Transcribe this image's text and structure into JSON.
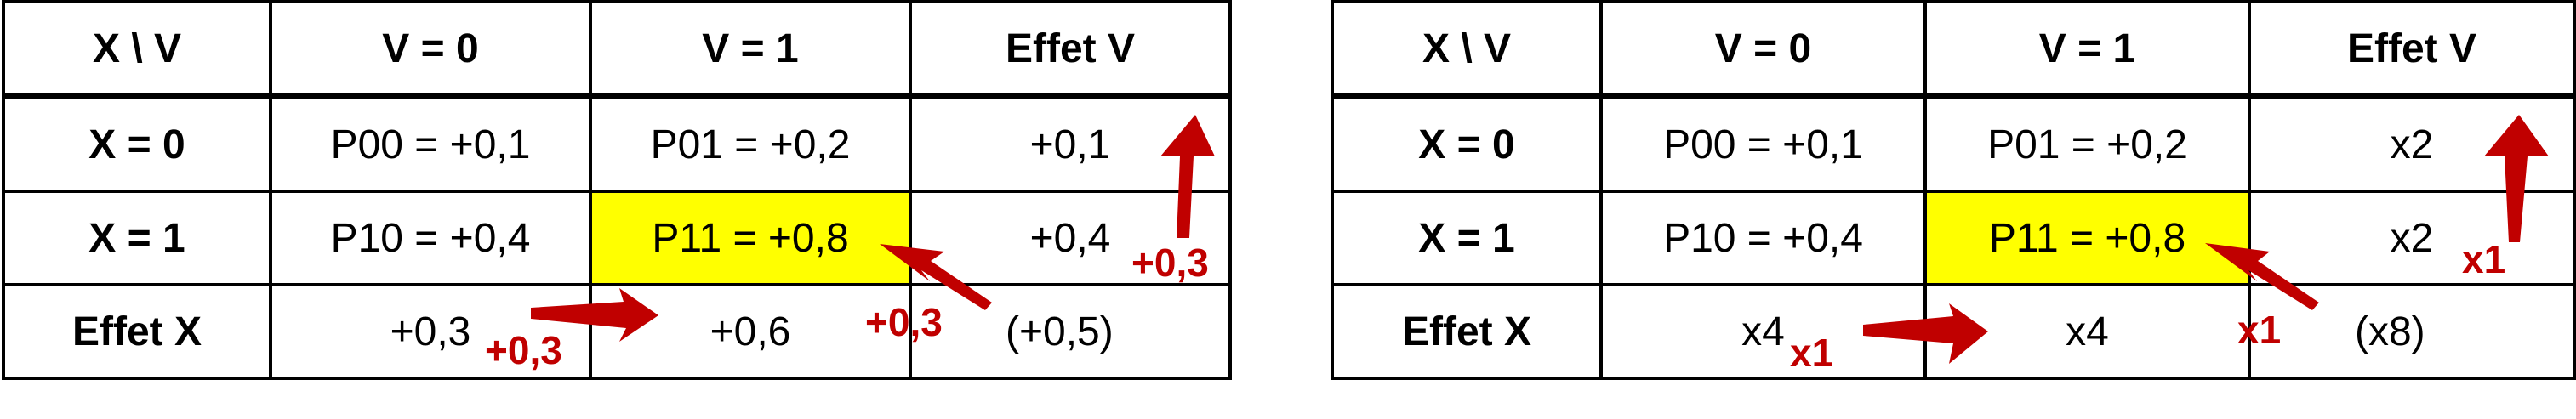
{
  "tables": [
    {
      "header": [
        "X \\ V",
        "V = 0",
        "V = 1",
        "Effet V"
      ],
      "rows": [
        [
          "X = 0",
          "P00 = +0,1",
          "P01 = +0,2",
          "+0,1"
        ],
        [
          "X = 1",
          "P10 = +0,4",
          "P11 = +0,8",
          "+0,4"
        ],
        [
          "Effet X",
          "+0,3",
          "+0,6",
          "(+0,5)"
        ]
      ],
      "annotations": {
        "col_arrow": "+0,3",
        "row_arrow": "+0,3",
        "diag_arrow": "+0,3"
      }
    },
    {
      "header": [
        "X \\ V",
        "V = 0",
        "V = 1",
        "Effet V"
      ],
      "rows": [
        [
          "X = 0",
          "P00 = +0,1",
          "P01 = +0,2",
          "x2"
        ],
        [
          "X = 1",
          "P10 = +0,4",
          "P11 = +0,8",
          "x2"
        ],
        [
          "Effet X",
          "x4",
          "x4",
          "(x8)"
        ]
      ],
      "annotations": {
        "col_arrow": "x1",
        "row_arrow": "x1",
        "diag_arrow": "x1"
      }
    }
  ],
  "colors": {
    "highlight": "#ffff00",
    "arrow": "#c00000"
  }
}
